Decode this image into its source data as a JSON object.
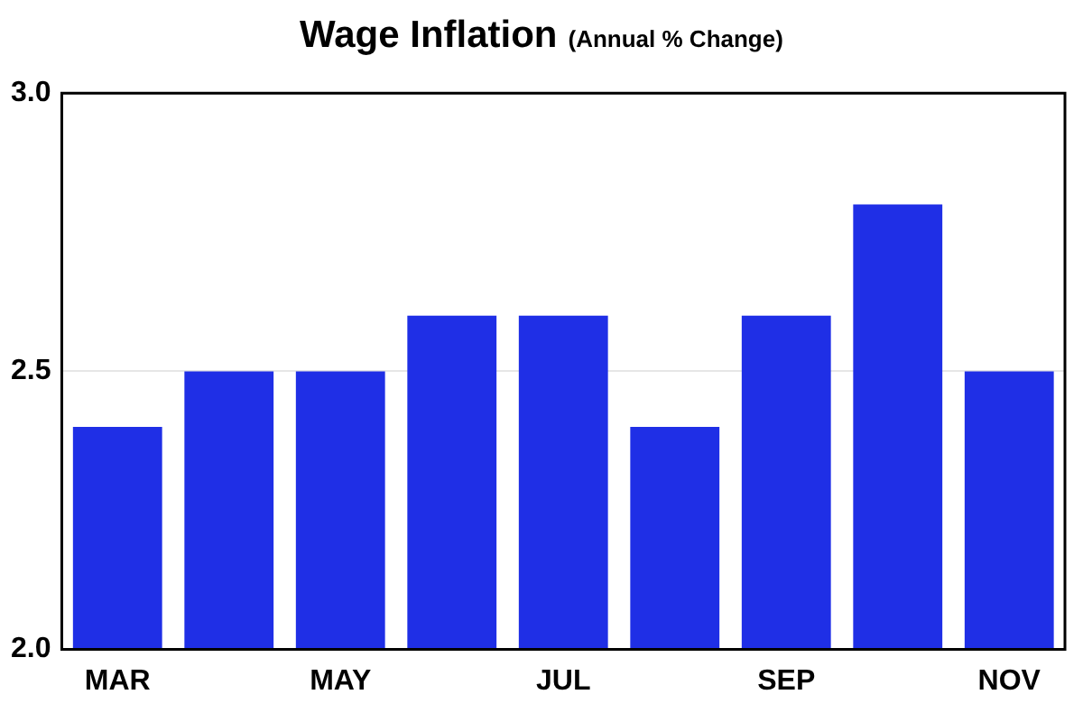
{
  "chart_data": {
    "type": "bar",
    "title": "Wage Inflation",
    "subtitle": "(Annual % Change)",
    "categories": [
      "MAR",
      null,
      "MAY",
      null,
      "JUL",
      null,
      "SEP",
      null,
      "NOV"
    ],
    "values": [
      2.4,
      2.5,
      2.5,
      2.6,
      2.6,
      2.4,
      2.6,
      2.8,
      2.5
    ],
    "color": "#1f2fe6",
    "ylim": [
      2.0,
      3.0
    ],
    "yticks": [
      {
        "value": 2.0,
        "label": "2.0"
      },
      {
        "value": 2.5,
        "label": "2.5"
      },
      {
        "value": 3.0,
        "label": "3.0"
      }
    ],
    "grid": "y"
  }
}
